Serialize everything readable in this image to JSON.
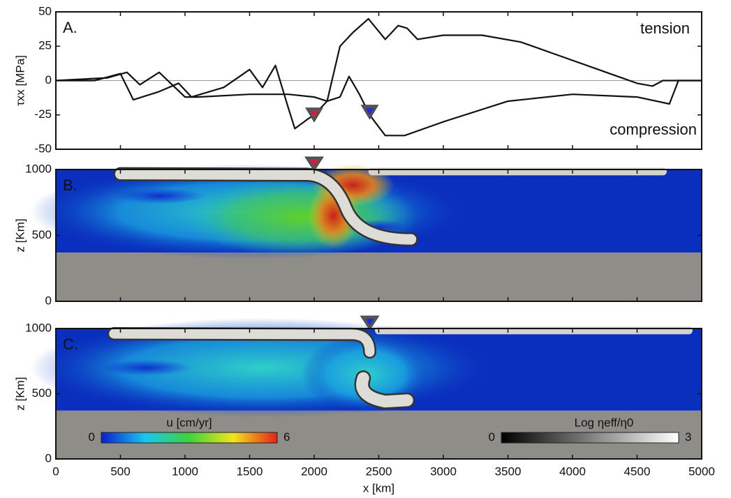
{
  "chart_data": [
    {
      "type": "line",
      "label": "A.",
      "ylabel": "τxx [MPa]",
      "annotations": [
        "tension",
        "compression"
      ],
      "xlim": [
        0,
        5000
      ],
      "xticks": [
        0,
        500,
        1000,
        1500,
        2000,
        2500,
        3000,
        3500,
        4000,
        4500,
        5000
      ],
      "ylim": [
        -50,
        50
      ],
      "yticks": [
        -50,
        -25,
        0,
        25,
        50
      ],
      "reference_line": 0,
      "series": [
        {
          "color": "#111111",
          "x": [
            0,
            300,
            500,
            600,
            800,
            950,
            1050,
            1300,
            1500,
            1600,
            1700,
            1800,
            1850,
            1950,
            2000,
            2100,
            2200,
            2300,
            2420,
            2550,
            2650,
            2720,
            2800,
            3000,
            3300,
            3600,
            3900,
            4200,
            4500,
            4620,
            4700,
            5000
          ],
          "values": [
            0,
            0,
            5,
            -14,
            -8,
            -2,
            -12,
            -5,
            8,
            -5,
            11,
            -20,
            -35,
            -28,
            -25,
            -15,
            25,
            35,
            45,
            30,
            40,
            38,
            30,
            33,
            33,
            28,
            18,
            8,
            -2,
            -4,
            0,
            0
          ]
        },
        {
          "color": "#111111",
          "x": [
            0,
            400,
            550,
            650,
            800,
            900,
            1000,
            1100,
            1500,
            1800,
            2000,
            2100,
            2200,
            2270,
            2350,
            2430,
            2550,
            2700,
            3000,
            3500,
            4000,
            4500,
            4750,
            4820,
            5000
          ],
          "values": [
            0,
            2,
            6,
            -3,
            6,
            -3,
            -12,
            -12,
            -10,
            -10,
            -12,
            -15,
            -12,
            3,
            -10,
            -25,
            -40,
            -40,
            -30,
            -15,
            -10,
            -12,
            -17,
            0,
            0
          ]
        }
      ],
      "markers": [
        {
          "x": 2000,
          "y": -25,
          "color": "#d0203f"
        },
        {
          "x": 2430,
          "y": -23,
          "color": "#1f2fd8"
        }
      ]
    },
    {
      "type": "image",
      "label": "B.",
      "ylabel": "z [Km]",
      "xlim": [
        0,
        5000
      ],
      "xticks": [
        0,
        500,
        1000,
        1500,
        2000,
        2500,
        3000,
        3500,
        4000,
        4500,
        5000
      ],
      "ylim": [
        0,
        1000
      ],
      "yticks": [
        0,
        500,
        1000
      ],
      "markers": [
        {
          "x": 2000,
          "color": "#d0203f"
        }
      ]
    },
    {
      "type": "image",
      "label": "C.",
      "ylabel": "z [Km]",
      "xlabel": "x [km]",
      "xlim": [
        0,
        5000
      ],
      "xticks": [
        0,
        500,
        1000,
        1500,
        2000,
        2500,
        3000,
        3500,
        4000,
        4500,
        5000
      ],
      "ylim": [
        0,
        1000
      ],
      "yticks": [
        0,
        500,
        1000
      ],
      "markers": [
        {
          "x": 2430,
          "color": "#1f2fd8"
        }
      ],
      "colorbars": [
        {
          "label": "u [cm/yr]",
          "lim": [
            0,
            6
          ],
          "ticks": [
            0,
            6
          ],
          "colors": [
            "#0a1fd0",
            "#17c8f0",
            "#3fd23a",
            "#f2e51c",
            "#e8201a"
          ]
        },
        {
          "label": "Log ηeff/η0",
          "lim": [
            0,
            3
          ],
          "ticks": [
            0,
            3
          ],
          "colors": [
            "#000000",
            "#ffffff"
          ]
        }
      ]
    }
  ]
}
